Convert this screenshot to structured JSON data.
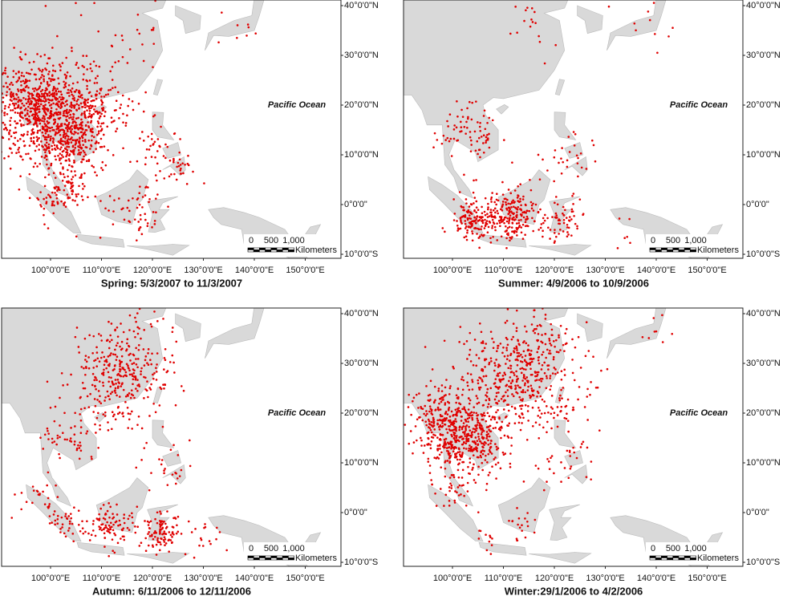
{
  "panels": [
    {
      "caption": "Spring: 5/3/2007 to 11/3/2007",
      "ocean_label": "Pacific Ocean"
    },
    {
      "caption": "Summer: 4/9/2006 to 10/9/2006",
      "ocean_label": "Pacific Ocean"
    },
    {
      "caption": "Autumn: 6/11/2006 to 12/11/2006",
      "ocean_label": "Pacific Ocean"
    },
    {
      "caption": "Winter:29/1/2006 to 4/2/2006",
      "ocean_label": "Pacific Ocean"
    }
  ],
  "lat_labels": [
    "40°0'0\"N",
    "30°0'0\"N",
    "20°0'0\"N",
    "10°0'0\"N",
    "0°0'0\"",
    "10°0'0\"S"
  ],
  "lon_labels": [
    "100°0'0\"E",
    "110°0'0\"E",
    "120°0'0\"E",
    "130°0'0\"E",
    "140°0'0\"E",
    "150°0'0\"E"
  ],
  "scale_bar": {
    "ticks": [
      "0",
      "500",
      "1,000"
    ],
    "unit": "Kilometers"
  }
}
